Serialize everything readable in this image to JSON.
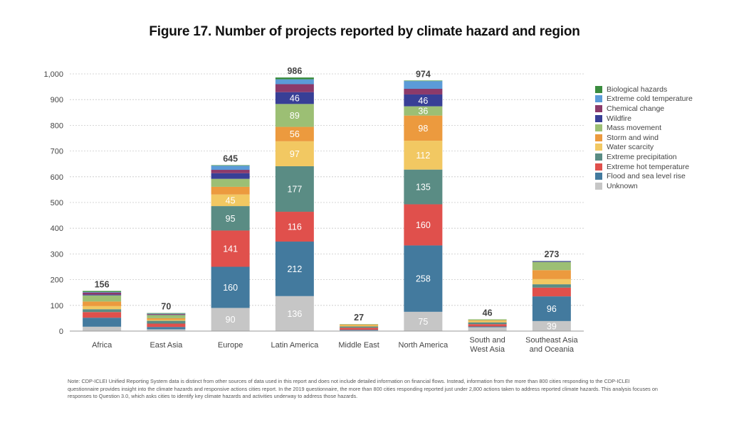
{
  "chart_data": {
    "type": "bar",
    "stacked": true,
    "title": "Figure 17. Number of projects reported by climate hazard and region",
    "xlabel": "",
    "ylabel": "",
    "ylim": [
      0,
      1000
    ],
    "yticks": [
      0,
      100,
      200,
      300,
      400,
      500,
      600,
      700,
      800,
      900,
      1000
    ],
    "ytick_labels": [
      "0",
      "100",
      "200",
      "300",
      "400",
      "500",
      "600",
      "700",
      "800",
      "900",
      "1,000"
    ],
    "grid": true,
    "legend_position": "right",
    "categories": [
      [
        "Africa"
      ],
      [
        "East Asia"
      ],
      [
        "Europe"
      ],
      [
        "Latin America"
      ],
      [
        "Middle East"
      ],
      [
        "North America"
      ],
      [
        "South and",
        "West Asia"
      ],
      [
        "Southeast Asia",
        "and Oceania"
      ]
    ],
    "totals": [
      156,
      70,
      645,
      986,
      27,
      974,
      46,
      273
    ],
    "series": [
      {
        "name": "Unknown",
        "color": "#c6c6c6",
        "values": [
          17,
          7,
          90,
          136,
          2,
          75,
          15,
          39
        ],
        "labeled": [
          false,
          false,
          true,
          true,
          false,
          true,
          false,
          true
        ]
      },
      {
        "name": "Flood and sea level rise",
        "color": "#437a9e",
        "values": [
          35,
          9,
          160,
          212,
          3,
          258,
          3,
          96
        ],
        "labeled": [
          false,
          false,
          true,
          true,
          false,
          true,
          false,
          true
        ]
      },
      {
        "name": "Extreme hot temperature",
        "color": "#e0504c",
        "values": [
          22,
          13,
          141,
          116,
          8,
          160,
          9,
          34
        ],
        "labeled": [
          false,
          false,
          true,
          true,
          false,
          true,
          false,
          false
        ]
      },
      {
        "name": "Extreme precipitation",
        "color": "#5a8c84",
        "values": [
          11,
          11,
          95,
          177,
          5,
          135,
          7,
          13
        ],
        "labeled": [
          false,
          false,
          true,
          true,
          false,
          true,
          false,
          false
        ]
      },
      {
        "name": "Water scarcity",
        "color": "#f2c862",
        "values": [
          12,
          4,
          45,
          97,
          4,
          112,
          6,
          20
        ],
        "labeled": [
          false,
          false,
          true,
          true,
          false,
          true,
          false,
          false
        ]
      },
      {
        "name": "Storm and wind",
        "color": "#ec9a3e",
        "values": [
          18,
          6,
          30,
          56,
          3,
          98,
          2,
          35
        ],
        "labeled": [
          false,
          false,
          false,
          true,
          false,
          true,
          false,
          false
        ]
      },
      {
        "name": "Mass movement",
        "color": "#9cbf74",
        "values": [
          24,
          13,
          31,
          89,
          2,
          36,
          4,
          32
        ],
        "labeled": [
          false,
          false,
          false,
          true,
          false,
          true,
          false,
          false
        ]
      },
      {
        "name": "Wildfire",
        "color": "#383f96",
        "values": [
          3,
          1,
          22,
          46,
          0,
          46,
          0,
          2
        ],
        "labeled": [
          false,
          false,
          false,
          true,
          false,
          true,
          false,
          false
        ]
      },
      {
        "name": "Chemical change",
        "color": "#8c3a6a",
        "values": [
          8,
          3,
          13,
          31,
          0,
          22,
          0,
          1
        ],
        "labeled": [
          false,
          false,
          false,
          false,
          false,
          false,
          false,
          false
        ]
      },
      {
        "name": "Extreme cold temperature",
        "color": "#5b9bd8",
        "values": [
          2,
          1,
          16,
          19,
          0,
          30,
          0,
          1
        ],
        "labeled": [
          false,
          false,
          false,
          false,
          false,
          false,
          false,
          false
        ]
      },
      {
        "name": "Biological hazards",
        "color": "#3a8c3e",
        "values": [
          4,
          2,
          2,
          7,
          0,
          2,
          0,
          0
        ],
        "labeled": [
          false,
          false,
          false,
          false,
          false,
          false,
          false,
          false
        ]
      }
    ],
    "legend_order": [
      "Biological hazards",
      "Extreme cold temperature",
      "Chemical change",
      "Wildfire",
      "Mass movement",
      "Storm and wind",
      "Water scarcity",
      "Extreme precipitation",
      "Extreme hot temperature",
      "Flood and sea level rise",
      "Unknown"
    ]
  },
  "note": "Note: CDP-ICLEI Unified Reporting System data is distinct from other sources of data used in this report and does not include detailed information on financial flows. Instead, information from the more than 800 cities responding to the CDP-ICLEI questionnaire provides insight into the climate hazards and responsive actions cities report. In the 2019 questionnaire, the more than 800 cities responding reported just under 2,800 actions taken to address reported climate hazards. This analysis focuses on responses to Question 3.0, which asks cities to identify key climate hazards and activities underway to address those hazards."
}
